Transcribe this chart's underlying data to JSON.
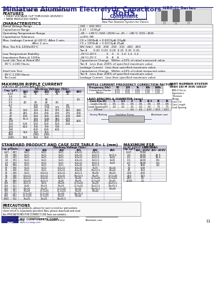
{
  "title": "Miniature Aluminum Electrolytic Capacitors",
  "series": "NRE-H Series",
  "subtitle1": "HIGH VOLTAGE, RADIAL LEADS, POLARIZED",
  "features_title": "FEATURES",
  "features": [
    "HIGH VOLTAGE (UP THROUGH 450VDC)",
    "NEW REDUCED SIZES"
  ],
  "char_title": "CHARACTERISTICS",
  "ripple_title": "MAXIMUM RIPPLE CURRENT",
  "ripple_subtitle": "(mA rms AT 120Hz AND 85°C)",
  "ripple_wv_header": "Working Voltage (Vdc)",
  "ripple_headers": [
    "Cap (μF)",
    "160",
    "200",
    "250",
    "315",
    "400",
    "450"
  ],
  "ripple_data": [
    [
      "0.47",
      "53",
      "71",
      "1.2",
      "24",
      "26",
      ""
    ],
    [
      "1.0",
      "63",
      "",
      "",
      "",
      "",
      ""
    ],
    [
      "2.2",
      "",
      "",
      "36",
      "",
      "",
      "60"
    ],
    [
      "3.3",
      "40",
      "40",
      "46",
      "60",
      "",
      ""
    ],
    [
      "4.7",
      "",
      "105",
      "1.05",
      "",
      "60",
      ""
    ],
    [
      "10",
      "",
      "156",
      "1.56",
      "175",
      "105",
      ""
    ],
    [
      "22",
      "133",
      "160",
      "110",
      "175",
      "145",
      "180"
    ],
    [
      "33",
      "145",
      "210",
      "200",
      "205",
      "175",
      "200"
    ],
    [
      "47",
      "200",
      "260",
      "260",
      "260",
      "200",
      "230"
    ],
    [
      "68",
      "95.0",
      "320",
      "9.45",
      "345",
      "270",
      ""
    ],
    [
      "100",
      "",
      "470",
      "470",
      "470",
      "380",
      "420"
    ],
    [
      "150",
      "500",
      "560",
      "560",
      "560",
      "500",
      ""
    ],
    [
      "220",
      "610",
      "700",
      "700",
      "700",
      "",
      ""
    ],
    [
      "330",
      "",
      "800",
      "800",
      "800",
      "",
      ""
    ],
    [
      "470",
      "710",
      "760",
      "760",
      "",
      "",
      ""
    ],
    [
      "680",
      "",
      "1060",
      "1060",
      "",
      "",
      ""
    ],
    [
      "1000",
      "950",
      "950",
      "950",
      "",
      "",
      ""
    ]
  ],
  "freq_title": "RIPPLE CURRENT FREQUENCY CORRECTION FACTOR",
  "freq_headers": [
    "Frequency (Hz)",
    "50",
    "120",
    "1k",
    "10k",
    "100k"
  ],
  "freq_rows": [
    [
      "Correction Factor",
      "0.75",
      "1.00",
      "1.20",
      "1.30",
      "1.30"
    ],
    [
      "Factor",
      "0.75",
      "1.00",
      "1.20",
      "1.30",
      "1.30"
    ]
  ],
  "lead_title": "LEAD SPACING & DIAMETER (mm)",
  "part_title": "PART NUMBER SYSTEM",
  "part_example": "NREH 100 M 350V 18X41F",
  "std_title": "STANDARD PRODUCT AND CASE SIZE TABLE D× L (mm)",
  "std_wv_header": "Working Voltage (Vdc)",
  "std_headers": [
    "Cap μF",
    "Code",
    "160",
    "200",
    "250",
    "315",
    "400",
    "450"
  ],
  "std_data": [
    [
      "0.47",
      "R47",
      "5x11",
      "5x11",
      "5x11",
      "6.3x11",
      "6.3x11",
      "-"
    ],
    [
      "1.0",
      "1R0",
      "5x11",
      "5x11",
      "5x11",
      "6.3x11",
      "6x11.5",
      "8x12.5"
    ],
    [
      "2.2",
      "2R2",
      "5x11",
      "5x11",
      "5x11",
      "6.3x11",
      "6x11.5",
      "8x20"
    ],
    [
      "3.3",
      "3R3",
      "5x11",
      "5x11",
      "5x11",
      "6.3x11",
      "8x11.5",
      "8x20"
    ],
    [
      "4.7",
      "4R7",
      "5x11",
      "5x11",
      "5x11",
      "6.3x11",
      "8x11.5",
      "8x20"
    ],
    [
      "6.8",
      "6R8",
      "5x11",
      "5x11",
      "5x11",
      "6.3x15",
      "8x11.5",
      ""
    ],
    [
      "10",
      "100",
      "5x11",
      "5x11",
      "6.3x11",
      "6.3x15",
      "8x15",
      "10x16"
    ],
    [
      "15",
      "150",
      "5x11",
      "5x11",
      "6.3x11",
      "6.3x15",
      "10x12.5",
      "10x20"
    ],
    [
      "22",
      "220",
      "5x11",
      "6.3x11",
      "6.3x11",
      "8x11.5",
      "10x20",
      "10x25"
    ],
    [
      "33",
      "330",
      "6.3x11",
      "6.3x11",
      "6.3x15",
      "10x12.5",
      "10x25",
      "12.5x20"
    ],
    [
      "47",
      "470",
      "6.3x11",
      "6.3x15",
      "8x11.5",
      "10x20",
      "12.5x20",
      "12.5x25"
    ],
    [
      "68",
      "680",
      "6.3x15",
      "8x11.5",
      "8x20",
      "10x25",
      "12.5x25",
      "16x25"
    ],
    [
      "100",
      "101",
      "8x11.5",
      "8x15",
      "10x20",
      "12.5x20",
      "16x20",
      "16x31.5"
    ],
    [
      "150",
      "151",
      "8x20",
      "10x15",
      "10x25",
      "12.5x25",
      "16x31.5",
      "18x35.5"
    ],
    [
      "220",
      "221",
      "10x15",
      "10x20",
      "12.5x20",
      "16x20",
      "18x35.5",
      "18x40"
    ],
    [
      "330",
      "331",
      "10x20",
      "12.5x20",
      "12.5x25",
      "16x25",
      "18x40",
      ""
    ],
    [
      "470",
      "471",
      "12.5x20",
      "12.5x20",
      "16x20",
      "18x35.5",
      "",
      ""
    ],
    [
      "680",
      "681",
      "12.5x20",
      "12.5x25",
      "16x25",
      "18x40",
      "",
      ""
    ],
    [
      "1000",
      "102",
      "16x25",
      "16x25",
      "18x35.5",
      "",
      "",
      ""
    ]
  ],
  "esr_title": "MAXIMUM ESR",
  "esr_subtitle": "(Ω AT 120HZ AND 20°C)",
  "esr_wv_header": "WV (Vdc)",
  "esr_headers": [
    "Cap (μF)",
    "160~250V",
    "315~450V"
  ],
  "esr_data": [
    [
      "0.47",
      "7500",
      ""
    ],
    [
      "1.0",
      "3500",
      "41.5"
    ],
    [
      "2.2",
      "2700",
      "14.5"
    ],
    [
      "3.3",
      "1800",
      "8.5"
    ],
    [
      "4.7",
      "1300",
      "6.5"
    ],
    [
      "10",
      "900",
      "4.5"
    ],
    [
      "22",
      "500",
      ""
    ],
    [
      "47",
      "350",
      ""
    ],
    [
      "100",
      "200",
      ""
    ],
    [
      "220",
      "120",
      ""
    ],
    [
      "470",
      "80",
      ""
    ],
    [
      "1000",
      "50",
      ""
    ]
  ],
  "precautions_title": "PRECAUTIONS",
  "bg_color": "#ffffff",
  "header_color": "#2d2d8f",
  "table_header_bg": "#d0d0e8",
  "border_color": "#999999",
  "text_color": "#111111",
  "rohs_color": "#2d2d8f"
}
